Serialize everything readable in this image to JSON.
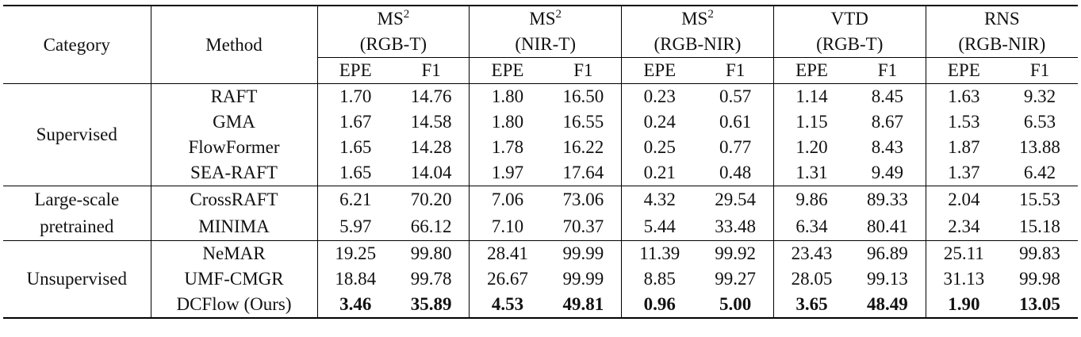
{
  "table": {
    "header": {
      "category": "Category",
      "method": "Method",
      "groups": [
        {
          "name": "MS",
          "sup": "2",
          "sub": "(RGB-T)"
        },
        {
          "name": "MS",
          "sup": "2",
          "sub": "(NIR-T)"
        },
        {
          "name": "MS",
          "sup": "2",
          "sub": "(RGB-NIR)"
        },
        {
          "name": "VTD",
          "sub": "(RGB-T)"
        },
        {
          "name": "RNS",
          "sub": "(RGB-NIR)"
        }
      ],
      "metrics": [
        "EPE",
        "F1"
      ]
    },
    "sections": [
      {
        "category": "Supervised",
        "rows": [
          {
            "method": "RAFT",
            "values": [
              "1.70",
              "14.76",
              "1.80",
              "16.50",
              "0.23",
              "0.57",
              "1.14",
              "8.45",
              "1.63",
              "9.32"
            ]
          },
          {
            "method": "GMA",
            "values": [
              "1.67",
              "14.58",
              "1.80",
              "16.55",
              "0.24",
              "0.61",
              "1.15",
              "8.67",
              "1.53",
              "6.53"
            ]
          },
          {
            "method": "FlowFormer",
            "values": [
              "1.65",
              "14.28",
              "1.78",
              "16.22",
              "0.25",
              "0.77",
              "1.20",
              "8.43",
              "1.87",
              "13.88"
            ]
          },
          {
            "method": "SEA-RAFT",
            "values": [
              "1.65",
              "14.04",
              "1.97",
              "17.64",
              "0.21",
              "0.48",
              "1.31",
              "9.49",
              "1.37",
              "6.42"
            ]
          }
        ]
      },
      {
        "category": "Large-scale pretrained",
        "rows": [
          {
            "method": "CrossRAFT",
            "values": [
              "6.21",
              "70.20",
              "7.06",
              "73.06",
              "4.32",
              "29.54",
              "9.86",
              "89.33",
              "2.04",
              "15.53"
            ]
          },
          {
            "method": "MINIMA",
            "values": [
              "5.97",
              "66.12",
              "7.10",
              "70.37",
              "5.44",
              "33.48",
              "6.34",
              "80.41",
              "2.34",
              "15.18"
            ]
          }
        ]
      },
      {
        "category": "Unsupervised",
        "rows": [
          {
            "method": "NeMAR",
            "values": [
              "19.25",
              "99.80",
              "28.41",
              "99.99",
              "11.39",
              "99.92",
              "23.43",
              "96.89",
              "25.11",
              "99.83"
            ]
          },
          {
            "method": "UMF-CMGR",
            "values": [
              "18.84",
              "99.78",
              "26.67",
              "99.99",
              "8.85",
              "99.27",
              "28.05",
              "99.13",
              "31.13",
              "99.98"
            ]
          },
          {
            "method": "DCFlow (Ours)",
            "values": [
              "3.46",
              "35.89",
              "4.53",
              "49.81",
              "0.96",
              "5.00",
              "3.65",
              "48.49",
              "1.90",
              "13.05"
            ]
          }
        ]
      }
    ]
  }
}
